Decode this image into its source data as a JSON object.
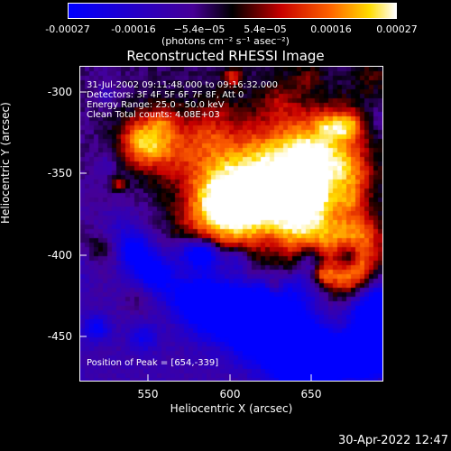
{
  "colorbar": {
    "ticks": [
      "-0.00027",
      "-0.00016",
      "−5.4e−05",
      "5.4e−05",
      "0.00016",
      "0.00027"
    ],
    "units": "(photons cm⁻² s⁻¹ asec⁻²)"
  },
  "title": "Reconstructed RHESSI Image",
  "info": {
    "time": "31-Jul-2002 09:11:48.000 to 09:16:32.000",
    "detectors": "Detectors: 3F 4F 5F 6F 7F 8F, Att 0",
    "energy": "Energy Range: 25.0 - 50.0 keV",
    "clean": "Clean     Total counts: 4.08E+03"
  },
  "peak": "Position of Peak = [654,-339]",
  "y_axis": {
    "label": "Heliocentric Y (arcsec)",
    "ticks": [
      "-300",
      "-350",
      "-400",
      "-450"
    ]
  },
  "x_axis": {
    "label": "Heliocentric X (arcsec)",
    "ticks": [
      "550",
      "600",
      "650"
    ]
  },
  "timestamp": "30-Apr-2022 12:47"
}
